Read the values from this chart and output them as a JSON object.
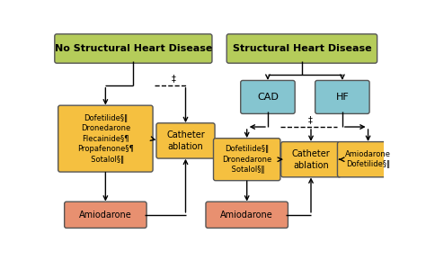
{
  "bg_color": "#ffffff",
  "colors": {
    "green": "#b5cc5a",
    "yellow": "#f5c040",
    "blue": "#85c5d0",
    "salmon": "#e89070"
  },
  "left_title": "No Structural Heart Disease",
  "right_title": "Structural Heart Disease",
  "cad_label": "CAD",
  "hf_label": "HF",
  "left_drugs": "Dofetilide§‖\nDronedarone\nFlecainide§¶\nPropafenone§¶\n  Sotalol§‖",
  "catheter_ablation": "Catheter\nablation",
  "amiodarone": "Amiodarone",
  "right_drugs": "Dofetilide§‖\nDronedarone\n Sotalol§‖",
  "right_amio_dofet": "Amiodarone\nDofetilide§‖",
  "dagger": "‡"
}
